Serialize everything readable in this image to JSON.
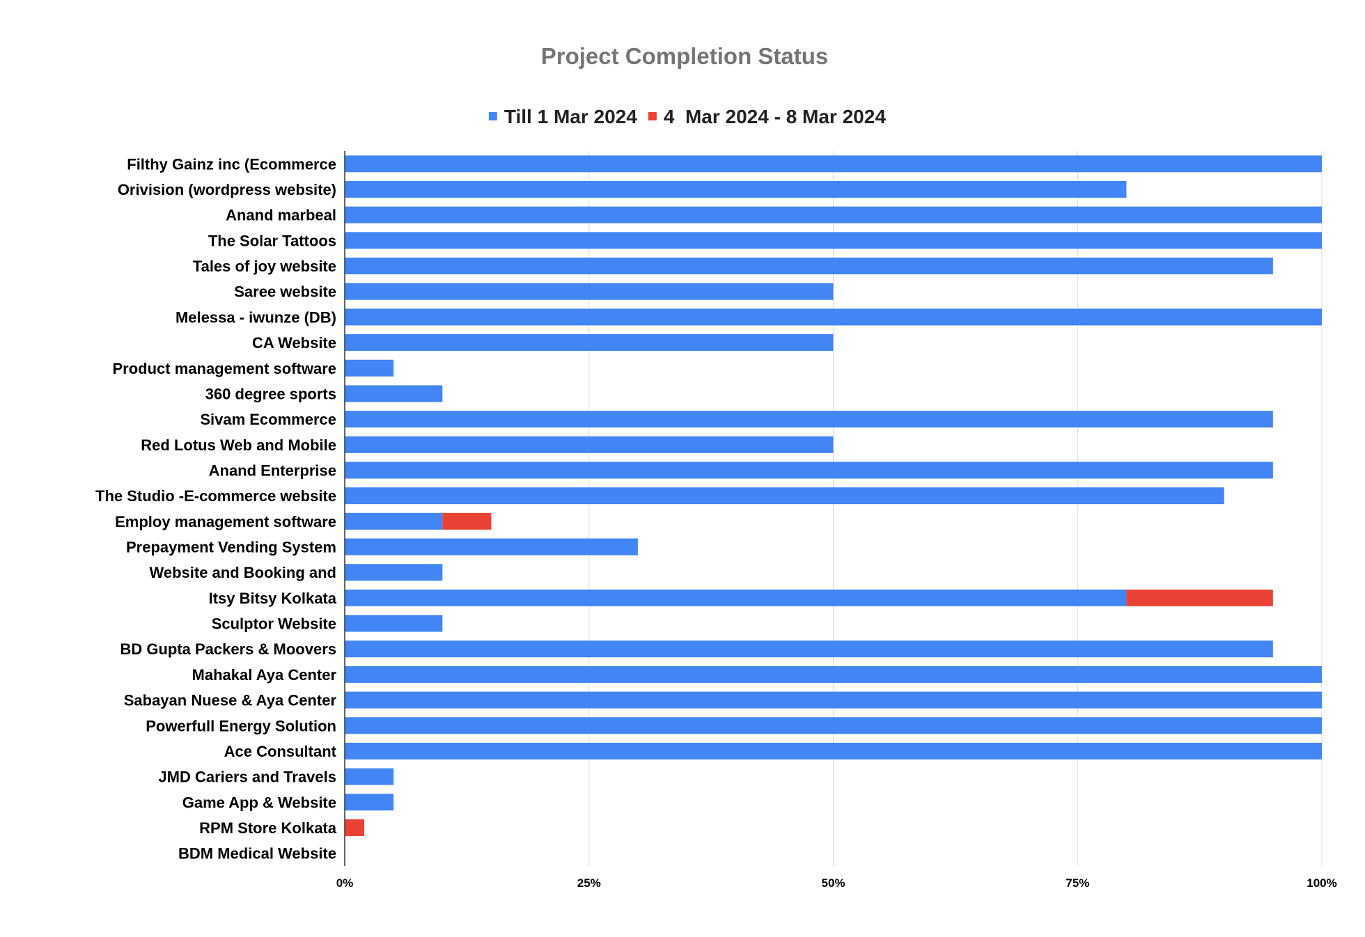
{
  "chart_data": {
    "type": "bar",
    "orientation": "horizontal",
    "stacked": true,
    "title": "Project Completion Status",
    "xlabel": "",
    "ylabel": "",
    "xlim": [
      0,
      1
    ],
    "x_ticks": [
      "0%",
      "25%",
      "50%",
      "75%",
      "100%"
    ],
    "grid": true,
    "legend_position": "top",
    "categories": [
      "Filthy Gainz inc (Ecommerce",
      "Orivision (wordpress website)",
      "Anand marbeal",
      "The Solar Tattoos",
      "Tales of joy website",
      "Saree website",
      "Melessa - iwunze (DB)",
      "CA Website",
      "Product management software",
      "360 degree sports",
      "Sivam Ecommerce",
      "Red Lotus Web and Mobile",
      "Anand Enterprise",
      "The Studio -E-commerce website",
      "Employ management software",
      "Prepayment Vending System",
      "Website and Booking and",
      "Itsy Bitsy Kolkata",
      "Sculptor Website",
      "BD Gupta Packers & Moovers",
      "Mahakal Aya Center",
      "Sabayan Nuese & Aya Center",
      "Powerfull Energy Solution",
      "Ace Consultant",
      "JMD Cariers and Travels",
      "Game App & Website",
      "RPM Store Kolkata",
      "BDM Medical Website"
    ],
    "series": [
      {
        "name": "Till 1 Mar 2024",
        "color": "#4285F4",
        "values": [
          1.0,
          0.8,
          1.0,
          1.0,
          0.95,
          0.5,
          1.0,
          0.5,
          0.05,
          0.1,
          0.95,
          0.5,
          0.95,
          0.9,
          0.1,
          0.3,
          0.1,
          0.8,
          0.1,
          0.95,
          1.0,
          1.0,
          1.0,
          1.0,
          0.05,
          0.05,
          0,
          0
        ]
      },
      {
        "name": "4  Mar 2024 - 8 Mar 2024",
        "color": "#EA4335",
        "values": [
          0,
          0,
          0,
          0,
          0,
          0,
          0,
          0,
          0,
          0,
          0,
          0,
          0,
          0,
          0.05,
          0,
          0,
          0.15,
          0,
          0,
          0,
          0,
          0,
          0,
          0,
          0,
          0.02,
          0
        ]
      }
    ]
  }
}
